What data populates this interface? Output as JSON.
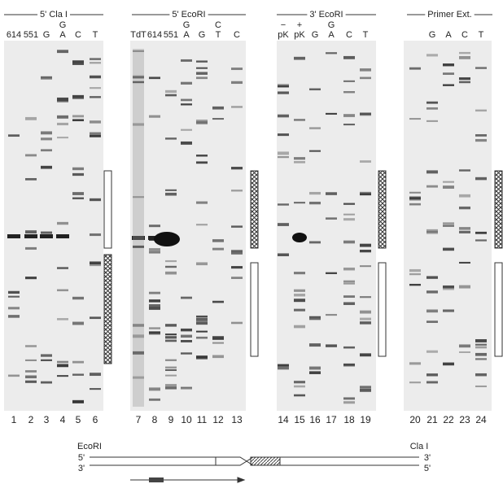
{
  "panels": [
    {
      "title": "5' Cla I",
      "lanes": [
        {
          "label": "614",
          "number": "1"
        },
        {
          "label": "551",
          "number": "2"
        },
        {
          "label": "G",
          "number": "3"
        },
        {
          "label_top": "G",
          "label": "A",
          "number": "4"
        },
        {
          "label": "C",
          "number": "5"
        },
        {
          "label": "T",
          "number": "6"
        }
      ]
    },
    {
      "title": "5' EcoRI",
      "lanes": [
        {
          "label": "TdT",
          "number": "7"
        },
        {
          "label": "614",
          "number": "8"
        },
        {
          "label": "551",
          "number": "9"
        },
        {
          "label_top": "G",
          "label": "A",
          "number": "10"
        },
        {
          "label": "G",
          "number": "11"
        },
        {
          "label_top": "C",
          "label": "T",
          "number": "12"
        },
        {
          "label": "C",
          "number": "13"
        }
      ]
    },
    {
      "title": "3' EcoRI",
      "lanes": [
        {
          "label_top": "−",
          "label": "pK",
          "number": "14"
        },
        {
          "label_top": "+",
          "label": "pK",
          "number": "15"
        },
        {
          "label": "G",
          "number": "16"
        },
        {
          "label_top": "G",
          "label": "A",
          "number": "17"
        },
        {
          "label": "C",
          "number": "18"
        },
        {
          "label": "T",
          "number": "19"
        }
      ]
    },
    {
      "title": "Primer Ext.",
      "lanes": [
        {
          "number": "20"
        },
        {
          "label": "G",
          "number": "21"
        },
        {
          "label": "A",
          "number": "22"
        },
        {
          "label": "C",
          "number": "23"
        },
        {
          "label": "T",
          "number": "24"
        }
      ]
    }
  ],
  "diagram": {
    "left_site": "EcoRI",
    "right_site": "Cla I",
    "top_left": "5'",
    "top_right": "3'",
    "bottom_left": "3'",
    "bottom_right": "5'"
  }
}
